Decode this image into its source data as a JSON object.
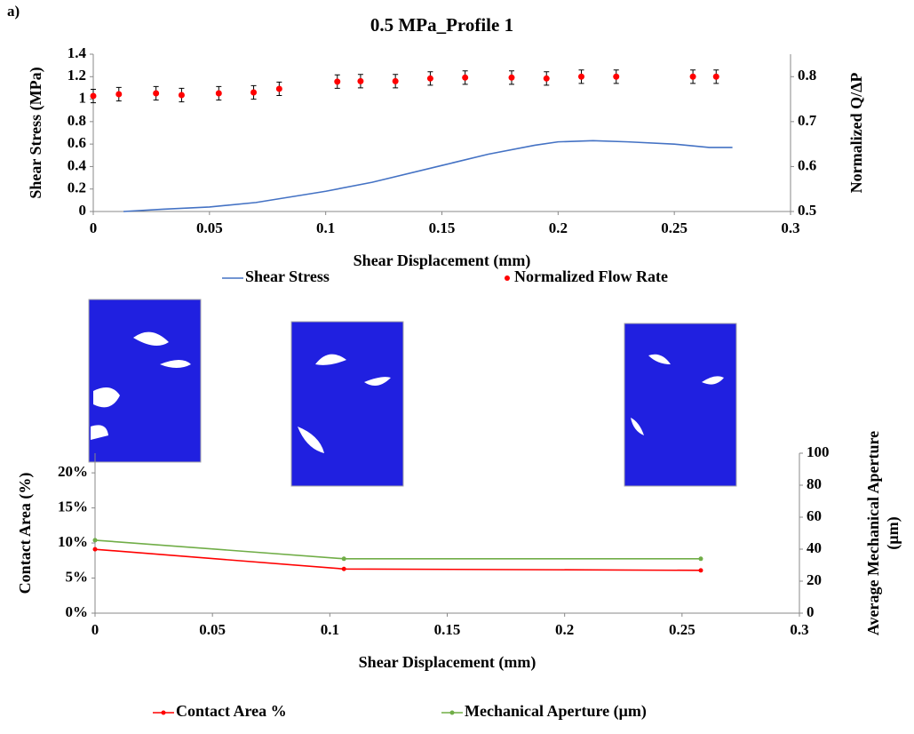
{
  "panel_label": "a)",
  "chart_data": [
    {
      "type": "combo",
      "title": "0.5 MPa_Profile 1",
      "x_label": "Shear Displacement (mm)",
      "y_label": "Shear Stress (MPa)",
      "y2_label": [
        "Normalized Q/ΔP"
      ],
      "xlim": [
        0,
        0.3
      ],
      "xticks": [
        0,
        0.05,
        0.1,
        0.15,
        0.2,
        0.25,
        0.3
      ],
      "ylim": [
        0,
        1.4
      ],
      "yticks": [
        0,
        0.2,
        0.4,
        0.6,
        0.8,
        1,
        1.2,
        1.4
      ],
      "y2lim": [
        0.5,
        0.85
      ],
      "y2ticks": [
        0.5,
        0.6,
        0.7,
        0.8
      ],
      "grid": false,
      "legend": "bottom",
      "series": [
        {
          "name": "Shear Stress",
          "type": "line",
          "color": "#4472c4",
          "x": [
            0.013,
            0.03,
            0.05,
            0.07,
            0.1,
            0.12,
            0.15,
            0.17,
            0.19,
            0.2,
            0.215,
            0.23,
            0.25,
            0.265,
            0.275
          ],
          "values": [
            0,
            0.02,
            0.04,
            0.08,
            0.18,
            0.26,
            0.41,
            0.51,
            0.59,
            0.62,
            0.63,
            0.62,
            0.6,
            0.57,
            0.57
          ]
        },
        {
          "name": "Normalized Flow Rate",
          "type": "scatter",
          "axis": "y2",
          "color": "#ff0000",
          "x": [
            0,
            0.011,
            0.027,
            0.038,
            0.054,
            0.069,
            0.08,
            0.105,
            0.115,
            0.13,
            0.145,
            0.16,
            0.18,
            0.195,
            0.21,
            0.225,
            0.258,
            0.268
          ],
          "values": [
            0.757,
            0.761,
            0.763,
            0.759,
            0.763,
            0.765,
            0.773,
            0.789,
            0.79,
            0.79,
            0.796,
            0.798,
            0.798,
            0.796,
            0.8,
            0.8,
            0.8,
            0.8
          ],
          "errors": [
            0.015,
            0.015,
            0.015,
            0.015,
            0.015,
            0.015,
            0.015,
            0.015,
            0.015,
            0.015,
            0.015,
            0.015,
            0.015,
            0.015,
            0.015,
            0.015,
            0.015,
            0.015
          ]
        }
      ]
    },
    {
      "type": "combo",
      "x_label": "Shear Displacement (mm)",
      "y_label": "Contact Area (%)",
      "y2_label": [
        "Average Mechanical Aperture",
        "(μm)"
      ],
      "xlim": [
        0,
        0.3
      ],
      "xticks": [
        0,
        0.05,
        0.1,
        0.15,
        0.2,
        0.25,
        0.3
      ],
      "ylim": [
        0,
        22.8
      ],
      "yticks": [
        {
          "value": 0,
          "label": "0%"
        },
        {
          "value": 5,
          "label": "5%"
        },
        {
          "value": 10,
          "label": "10%"
        },
        {
          "value": 15,
          "label": "15%"
        },
        {
          "value": 20,
          "label": "20%"
        }
      ],
      "y2lim": [
        0,
        100
      ],
      "y2ticks": [
        0,
        20,
        40,
        60,
        80,
        100
      ],
      "grid": false,
      "legend": "bottom",
      "series": [
        {
          "name": "Contact Area %",
          "type": "line",
          "markers": true,
          "color": "#ff0000",
          "x": [
            0,
            0.106,
            0.258
          ],
          "values": [
            9.1,
            6.3,
            6.1
          ]
        },
        {
          "name": "Mechanical Aperture (μm)",
          "type": "line",
          "markers": true,
          "axis": "y2",
          "color": "#70ad47",
          "x": [
            0,
            0.106,
            0.258
          ],
          "values": [
            45.6,
            34,
            34
          ]
        }
      ]
    }
  ]
}
